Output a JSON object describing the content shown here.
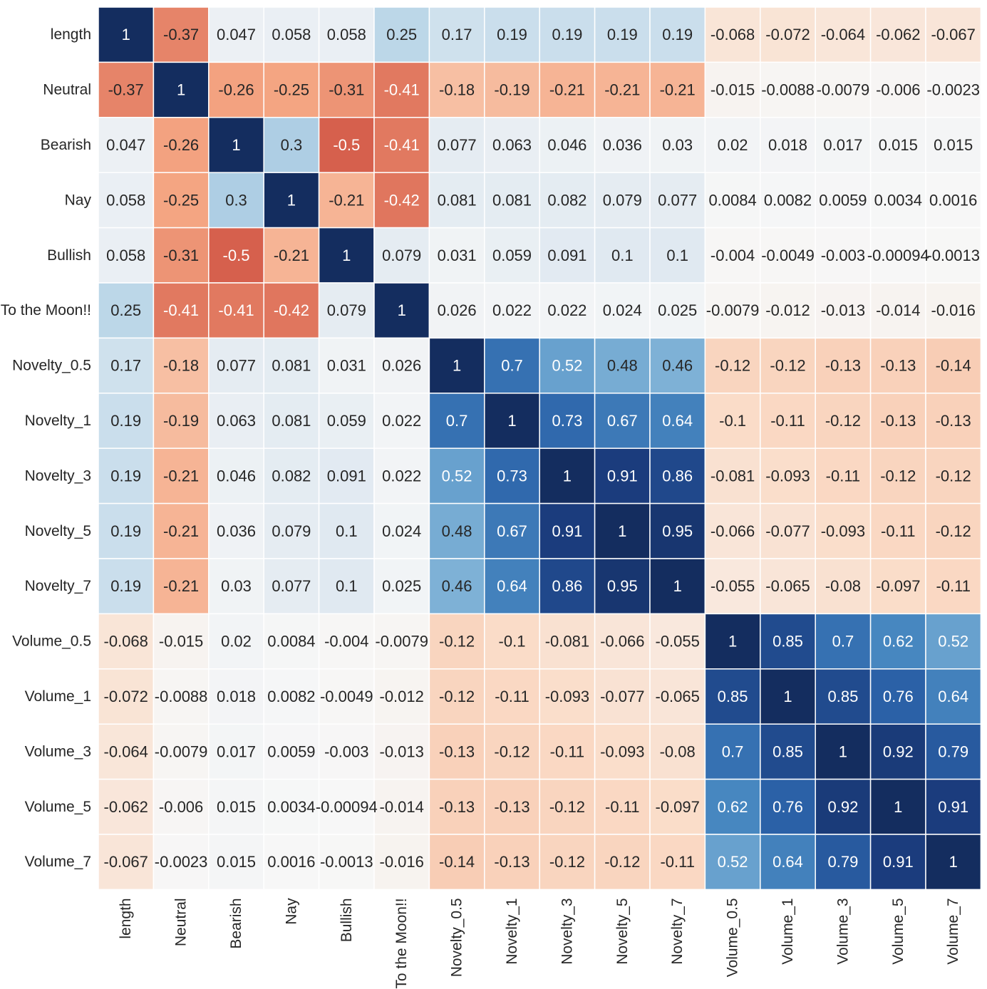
{
  "chart_data": {
    "type": "heatmap",
    "title": "",
    "colormap": "RdBu",
    "vmin": -1,
    "vmax": 1,
    "labels": [
      "length",
      "Neutral",
      "Bearish",
      "Nay",
      "Bullish",
      "To the Moon!!",
      "Novelty_0.5",
      "Novelty_1",
      "Novelty_3",
      "Novelty_5",
      "Novelty_7",
      "Volume_0.5",
      "Volume_1",
      "Volume_3",
      "Volume_5",
      "Volume_7"
    ],
    "values": [
      [
        1,
        -0.37,
        0.047,
        0.058,
        0.058,
        0.25,
        0.17,
        0.19,
        0.19,
        0.19,
        0.19,
        -0.068,
        -0.072,
        -0.064,
        -0.062,
        -0.067
      ],
      [
        -0.37,
        1,
        -0.26,
        -0.25,
        -0.31,
        -0.41,
        -0.18,
        -0.19,
        -0.21,
        -0.21,
        -0.21,
        -0.015,
        -0.0088,
        -0.0079,
        -0.006,
        -0.0023
      ],
      [
        0.047,
        -0.26,
        1,
        0.3,
        -0.5,
        -0.41,
        0.077,
        0.063,
        0.046,
        0.036,
        0.03,
        0.02,
        0.018,
        0.017,
        0.015,
        0.015
      ],
      [
        0.058,
        -0.25,
        0.3,
        1,
        -0.21,
        -0.42,
        0.081,
        0.081,
        0.082,
        0.079,
        0.077,
        0.0084,
        0.0082,
        0.0059,
        0.0034,
        0.0016
      ],
      [
        0.058,
        -0.31,
        -0.5,
        -0.21,
        1,
        0.079,
        0.031,
        0.059,
        0.091,
        0.1,
        0.1,
        -0.004,
        -0.0049,
        -0.003,
        -0.00094,
        -0.0013
      ],
      [
        0.25,
        -0.41,
        -0.41,
        -0.42,
        0.079,
        1,
        0.026,
        0.022,
        0.022,
        0.024,
        0.025,
        -0.0079,
        -0.012,
        -0.013,
        -0.014,
        -0.016
      ],
      [
        0.17,
        -0.18,
        0.077,
        0.081,
        0.031,
        0.026,
        1,
        0.7,
        0.52,
        0.48,
        0.46,
        -0.12,
        -0.12,
        -0.13,
        -0.13,
        -0.14
      ],
      [
        0.19,
        -0.19,
        0.063,
        0.081,
        0.059,
        0.022,
        0.7,
        1,
        0.73,
        0.67,
        0.64,
        -0.1,
        -0.11,
        -0.12,
        -0.13,
        -0.13
      ],
      [
        0.19,
        -0.21,
        0.046,
        0.082,
        0.091,
        0.022,
        0.52,
        0.73,
        1,
        0.91,
        0.86,
        -0.081,
        -0.093,
        -0.11,
        -0.12,
        -0.12
      ],
      [
        0.19,
        -0.21,
        0.036,
        0.079,
        0.1,
        0.024,
        0.48,
        0.67,
        0.91,
        1,
        0.95,
        -0.066,
        -0.077,
        -0.093,
        -0.11,
        -0.12
      ],
      [
        0.19,
        -0.21,
        0.03,
        0.077,
        0.1,
        0.025,
        0.46,
        0.64,
        0.86,
        0.95,
        1,
        -0.055,
        -0.065,
        -0.08,
        -0.097,
        -0.11
      ],
      [
        -0.068,
        -0.015,
        0.02,
        0.0084,
        -0.004,
        -0.0079,
        -0.12,
        -0.1,
        -0.081,
        -0.066,
        -0.055,
        1,
        0.85,
        0.7,
        0.62,
        0.52
      ],
      [
        -0.072,
        -0.0088,
        0.018,
        0.0082,
        -0.0049,
        -0.012,
        -0.12,
        -0.11,
        -0.093,
        -0.077,
        -0.065,
        0.85,
        1,
        0.85,
        0.76,
        0.64
      ],
      [
        -0.064,
        -0.0079,
        0.017,
        0.0059,
        -0.003,
        -0.013,
        -0.13,
        -0.12,
        -0.11,
        -0.093,
        -0.08,
        0.7,
        0.85,
        1,
        0.92,
        0.79
      ],
      [
        -0.062,
        -0.006,
        0.015,
        0.0034,
        -0.00094,
        -0.014,
        -0.13,
        -0.13,
        -0.12,
        -0.11,
        -0.097,
        0.62,
        0.76,
        0.92,
        1,
        0.91
      ],
      [
        -0.067,
        -0.0023,
        0.015,
        0.0016,
        -0.0013,
        -0.016,
        -0.14,
        -0.13,
        -0.12,
        -0.12,
        -0.11,
        0.52,
        0.64,
        0.79,
        0.91,
        1
      ]
    ],
    "annotated": true,
    "legend": "none"
  }
}
